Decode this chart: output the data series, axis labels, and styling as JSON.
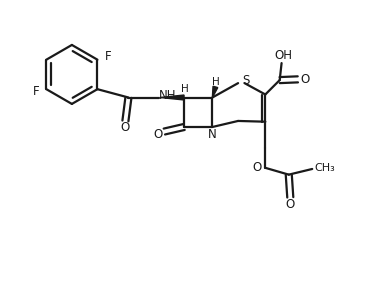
{
  "background_color": "#ffffff",
  "line_color": "#1a1a1a",
  "figsize": [
    3.82,
    2.85
  ],
  "dpi": 100,
  "xlim": [
    0,
    10
  ],
  "ylim": [
    0,
    7.5
  ]
}
